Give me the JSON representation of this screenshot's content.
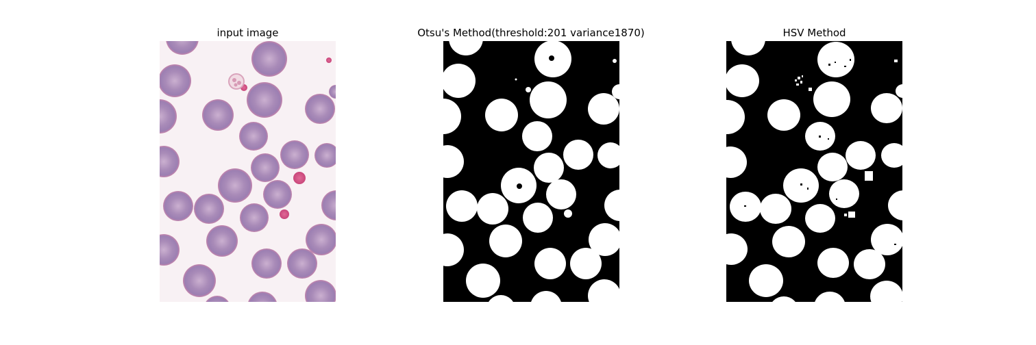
{
  "figure": {
    "panels": [
      {
        "id": "input",
        "title": "input image"
      },
      {
        "id": "otsu",
        "title": "Otsu's Method(threshold:201 variance1870)"
      },
      {
        "id": "hsv",
        "title": "HSV Method"
      }
    ]
  },
  "colors": {
    "page_background": "#ffffff",
    "input_background": "#f8f1f4",
    "cell_fill": "#a889b6",
    "cell_center": "#c6a9cc",
    "cell_rim": "#c37fa6",
    "platelet": "#d9588b",
    "mask_background": "#000000",
    "mask_foreground": "#ffffff"
  }
}
